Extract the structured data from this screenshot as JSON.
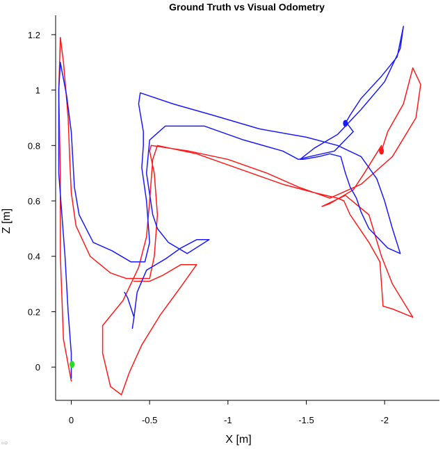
{
  "chart_data": {
    "type": "line",
    "title": "Ground Truth vs Visual Odometry",
    "xlabel": "X [m]",
    "ylabel": "Z [m]",
    "xlim": [
      0.1,
      -2.35
    ],
    "ylim": [
      -0.12,
      1.27
    ],
    "x_reversed": true,
    "grid": false,
    "legend": "none",
    "x_ticks": [
      0,
      -0.5,
      -1,
      -1.5,
      -2
    ],
    "x_tick_labels": [
      "0",
      "-0.5",
      "-1",
      "-1.5",
      "-2"
    ],
    "y_ticks": [
      0,
      0.2,
      0.4,
      0.6,
      0.8,
      1,
      1.2
    ],
    "y_tick_labels": [
      "0",
      "0.2",
      "0.4",
      "0.6",
      "0.8",
      "1",
      "1.2"
    ],
    "series": [
      {
        "color": "#ff1a1a",
        "points": [
          [
            0.0,
            -0.05
          ],
          [
            0.05,
            0.1
          ],
          [
            0.07,
            0.4
          ],
          [
            0.07,
            0.7
          ],
          [
            0.08,
            1.0
          ],
          [
            0.07,
            1.19
          ],
          [
            0.05,
            1.1
          ],
          [
            0.02,
            0.9
          ],
          [
            0.01,
            0.75
          ],
          [
            0.0,
            0.63
          ],
          [
            -0.03,
            0.51
          ],
          [
            -0.12,
            0.4
          ],
          [
            -0.25,
            0.34
          ],
          [
            -0.35,
            0.32
          ],
          [
            -0.5,
            0.32
          ],
          [
            -0.53,
            0.4
          ],
          [
            -0.55,
            0.55
          ],
          [
            -0.53,
            0.7
          ],
          [
            -0.5,
            0.78
          ],
          [
            -0.51,
            0.8
          ],
          [
            -0.75,
            0.78
          ],
          [
            -1.0,
            0.75
          ],
          [
            -1.25,
            0.7
          ],
          [
            -1.45,
            0.65
          ],
          [
            -1.65,
            0.61
          ],
          [
            -1.85,
            0.66
          ],
          [
            -2.05,
            0.76
          ],
          [
            -2.2,
            0.9
          ],
          [
            -2.23,
            1.02
          ],
          [
            -2.18,
            1.08
          ],
          [
            -2.12,
            0.95
          ],
          [
            -2.02,
            0.85
          ],
          [
            -1.98,
            0.78
          ],
          [
            -1.98,
            0.8
          ],
          [
            -1.87,
            0.7
          ],
          [
            -1.8,
            0.64
          ],
          [
            -1.65,
            0.59
          ],
          [
            -1.6,
            0.58
          ],
          [
            -1.75,
            0.62
          ],
          [
            -1.9,
            0.55
          ],
          [
            -1.98,
            0.4
          ],
          [
            -2.05,
            0.3
          ],
          [
            -2.18,
            0.18
          ],
          [
            -2.05,
            0.21
          ],
          [
            -1.99,
            0.22
          ],
          [
            -1.97,
            0.38
          ],
          [
            -1.9,
            0.45
          ],
          [
            -1.78,
            0.55
          ],
          [
            -1.74,
            0.6
          ],
          [
            -1.7,
            0.61
          ],
          [
            -1.55,
            0.63
          ],
          [
            -1.35,
            0.66
          ],
          [
            -1.1,
            0.71
          ],
          [
            -0.8,
            0.77
          ],
          [
            -0.55,
            0.8
          ],
          [
            -0.52,
            0.75
          ],
          [
            -0.5,
            0.6
          ],
          [
            -0.48,
            0.47
          ],
          [
            -0.43,
            0.36
          ],
          [
            -0.33,
            0.24
          ],
          [
            -0.2,
            0.15
          ],
          [
            -0.2,
            0.05
          ],
          [
            -0.25,
            -0.07
          ],
          [
            -0.32,
            -0.1
          ],
          [
            -0.37,
            -0.02
          ],
          [
            -0.45,
            0.08
          ],
          [
            -0.57,
            0.19
          ],
          [
            -0.7,
            0.29
          ],
          [
            -0.8,
            0.37
          ],
          [
            -0.7,
            0.37
          ],
          [
            -0.58,
            0.33
          ],
          [
            -0.5,
            0.31
          ],
          [
            -0.4,
            0.31
          ]
        ]
      },
      {
        "color": "#1a1aff",
        "points": [
          [
            0.0,
            -0.04
          ],
          [
            0.0,
            0.05
          ],
          [
            0.02,
            0.2
          ],
          [
            0.04,
            0.4
          ],
          [
            0.08,
            0.7
          ],
          [
            0.08,
            1.0
          ],
          [
            0.07,
            1.1
          ],
          [
            0.03,
            0.98
          ],
          [
            0.0,
            0.85
          ],
          [
            -0.02,
            0.65
          ],
          [
            -0.05,
            0.55
          ],
          [
            -0.14,
            0.45
          ],
          [
            -0.26,
            0.42
          ],
          [
            -0.38,
            0.38
          ],
          [
            -0.47,
            0.38
          ],
          [
            -0.5,
            0.45
          ],
          [
            -0.48,
            0.6
          ],
          [
            -0.45,
            0.72
          ],
          [
            -0.46,
            0.8
          ],
          [
            -0.46,
            0.85
          ],
          [
            -0.43,
            0.95
          ],
          [
            -0.44,
            0.99
          ],
          [
            -0.65,
            0.95
          ],
          [
            -0.9,
            0.91
          ],
          [
            -1.2,
            0.86
          ],
          [
            -1.5,
            0.83
          ],
          [
            -1.7,
            0.8
          ],
          [
            -1.85,
            0.76
          ],
          [
            -1.95,
            0.68
          ],
          [
            -2.0,
            0.6
          ],
          [
            -2.05,
            0.5
          ],
          [
            -2.1,
            0.41
          ],
          [
            -2.02,
            0.43
          ],
          [
            -1.9,
            0.5
          ],
          [
            -1.85,
            0.56
          ],
          [
            -1.82,
            0.61
          ],
          [
            -1.78,
            0.65
          ],
          [
            -1.75,
            0.7
          ],
          [
            -1.72,
            0.76
          ],
          [
            -1.65,
            0.77
          ],
          [
            -1.58,
            0.76
          ],
          [
            -1.48,
            0.75
          ],
          [
            -1.46,
            0.75
          ],
          [
            -1.55,
            0.79
          ],
          [
            -1.7,
            0.84
          ],
          [
            -1.85,
            0.93
          ],
          [
            -2.0,
            1.03
          ],
          [
            -2.1,
            1.15
          ],
          [
            -2.12,
            1.23
          ],
          [
            -2.08,
            1.12
          ],
          [
            -1.98,
            1.05
          ],
          [
            -1.85,
            0.97
          ],
          [
            -1.78,
            0.91
          ],
          [
            -1.75,
            0.88
          ],
          [
            -1.76,
            0.88
          ],
          [
            -1.8,
            0.85
          ],
          [
            -1.68,
            0.78
          ],
          [
            -1.52,
            0.76
          ],
          [
            -1.45,
            0.75
          ],
          [
            -1.35,
            0.78
          ],
          [
            -1.1,
            0.82
          ],
          [
            -0.85,
            0.87
          ],
          [
            -0.6,
            0.87
          ],
          [
            -0.5,
            0.82
          ],
          [
            -0.48,
            0.7
          ],
          [
            -0.52,
            0.55
          ],
          [
            -0.55,
            0.5
          ],
          [
            -0.62,
            0.45
          ],
          [
            -0.74,
            0.41
          ],
          [
            -0.88,
            0.46
          ],
          [
            -0.8,
            0.46
          ],
          [
            -0.7,
            0.43
          ],
          [
            -0.6,
            0.39
          ],
          [
            -0.48,
            0.35
          ],
          [
            -0.42,
            0.27
          ],
          [
            -0.4,
            0.18
          ],
          [
            -0.39,
            0.14
          ],
          [
            -0.4,
            0.18
          ],
          [
            -0.36,
            0.25
          ],
          [
            -0.34,
            0.27
          ]
        ]
      }
    ],
    "markers": [
      {
        "color": "#ff1a1a",
        "x": -1.98,
        "y": 0.78
      },
      {
        "color": "#1a1aff",
        "x": -1.75,
        "y": 0.88
      },
      {
        "color": "#22dd22",
        "x": -0.005,
        "y": 0.01
      }
    ]
  }
}
